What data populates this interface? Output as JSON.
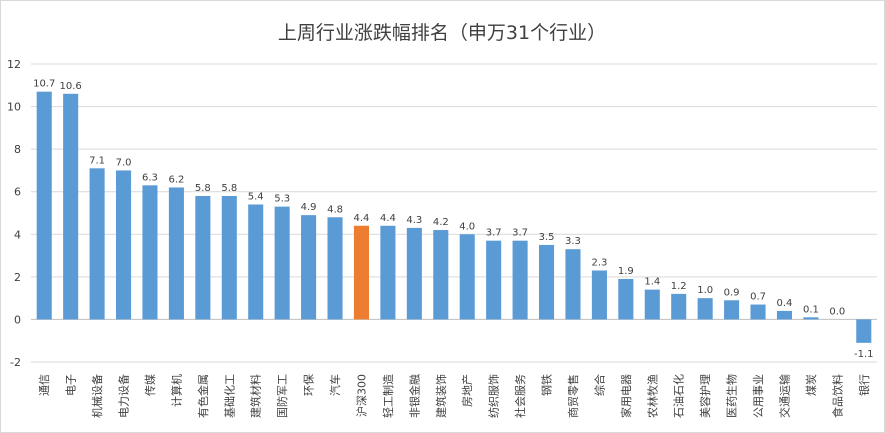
{
  "chart_data": {
    "type": "bar",
    "title": "上周行业涨跌幅排名（申万31个行业）",
    "categories": [
      "通信",
      "电子",
      "机械设备",
      "电力设备",
      "传媒",
      "计算机",
      "有色金属",
      "基础化工",
      "建筑材料",
      "国防军工",
      "环保",
      "汽车",
      "沪深300",
      "轻工制造",
      "非银金融",
      "建筑装饰",
      "房地产",
      "纺织服饰",
      "社会服务",
      "钢铁",
      "商贸零售",
      "综合",
      "家用电器",
      "农林牧渔",
      "石油石化",
      "美容护理",
      "医药生物",
      "公用事业",
      "交通运输",
      "煤炭",
      "食品饮料",
      "银行"
    ],
    "values": [
      10.7,
      10.6,
      7.1,
      7.0,
      6.3,
      6.2,
      5.8,
      5.8,
      5.4,
      5.3,
      4.9,
      4.8,
      4.4,
      4.4,
      4.3,
      4.2,
      4.0,
      3.7,
      3.7,
      3.5,
      3.3,
      2.3,
      1.9,
      1.4,
      1.2,
      1.0,
      0.9,
      0.7,
      0.4,
      0.1,
      0.0,
      -1.1
    ],
    "data_labels": [
      "10.7",
      "10.6",
      "7.1",
      "7.0",
      "6.3",
      "6.2",
      "5.8",
      "5.8",
      "5.4",
      "5.3",
      "4.9",
      "4.8",
      "4.4",
      "4.4",
      "4.3",
      "4.2",
      "4.0",
      "3.7",
      "3.7",
      "3.5",
      "3.3",
      "2.3",
      "1.9",
      "1.4",
      "1.2",
      "1.0",
      "0.9",
      "0.7",
      "0.4",
      "0.1",
      "0.0",
      "-1.1"
    ],
    "ylim": [
      -2,
      12
    ],
    "yticks": [
      -2,
      0,
      2,
      4,
      6,
      8,
      10,
      12
    ],
    "ytick_labels": [
      "-2",
      "0",
      "2",
      "4",
      "6",
      "8",
      "10",
      "12"
    ],
    "grid": true,
    "legend": "none",
    "xlabel": "",
    "ylabel": "",
    "colors": {
      "default": "#5B9BD5",
      "highlight": "#ED7D31"
    },
    "highlight_category": "沪深300"
  }
}
